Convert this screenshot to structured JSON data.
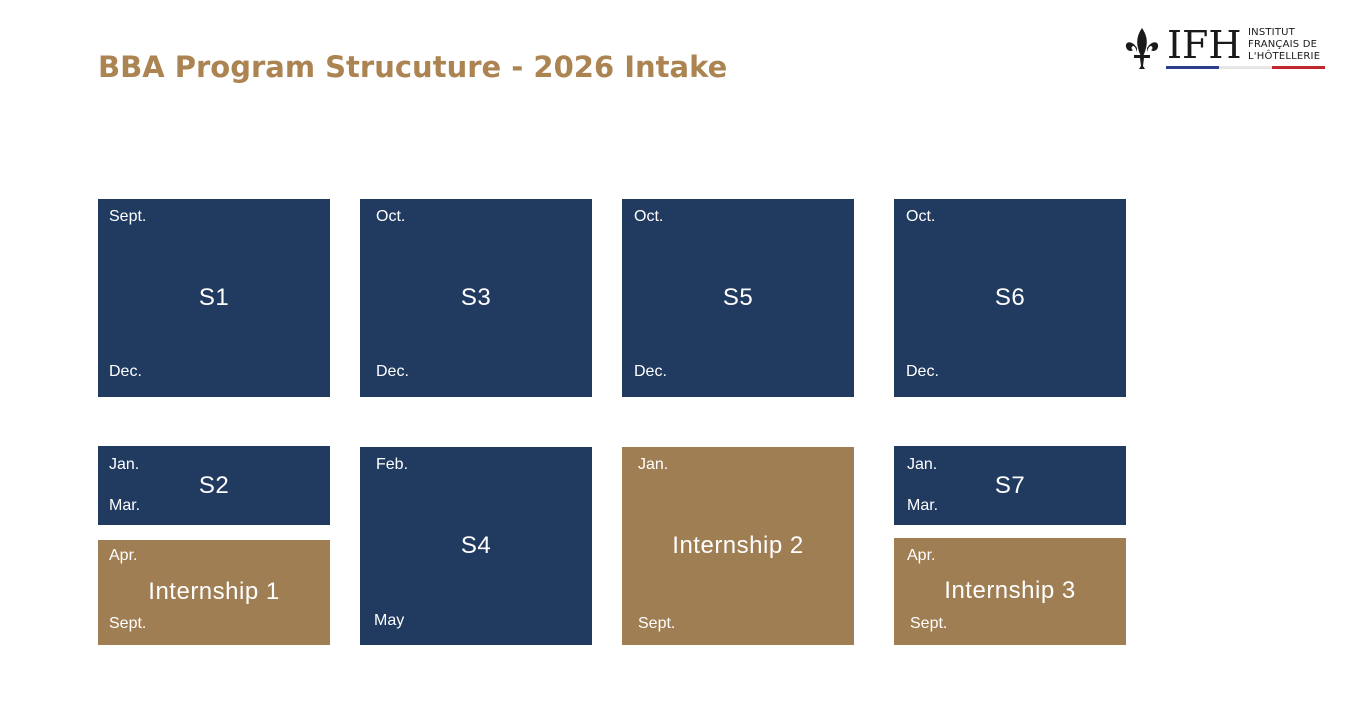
{
  "title": "BBA Program Strucuture - 2026 Intake",
  "logo": {
    "letters": "IFH",
    "line1": "INSTITUT",
    "line2": "FRANÇAIS DE",
    "line3": "L'HÔTELLERIE"
  },
  "boxes": {
    "s1": {
      "label": "S1",
      "start": "Sept.",
      "end": "Dec."
    },
    "s3": {
      "label": "S3",
      "start": "Oct.",
      "end": "Dec."
    },
    "s5": {
      "label": "S5",
      "start": "Oct.",
      "end": "Dec."
    },
    "s6": {
      "label": "S6",
      "start": "Oct.",
      "end": "Dec."
    },
    "s2": {
      "label": "S2",
      "start": "Jan.",
      "end": "Mar."
    },
    "internship1": {
      "label": "Internship 1",
      "start": "Apr.",
      "end": "Sept."
    },
    "s4": {
      "label": "S4",
      "start": "Feb.",
      "end": "May"
    },
    "internship2": {
      "label": "Internship 2",
      "start": "Jan.",
      "end": "Sept."
    },
    "s7": {
      "label": "S7",
      "start": "Jan.",
      "end": "Mar."
    },
    "internship3": {
      "label": "Internship 3",
      "start": "Apr.",
      "end": "Sept."
    }
  },
  "colors": {
    "title": "#ab8452",
    "semester": "#213a60",
    "internship": "#a07e53"
  }
}
